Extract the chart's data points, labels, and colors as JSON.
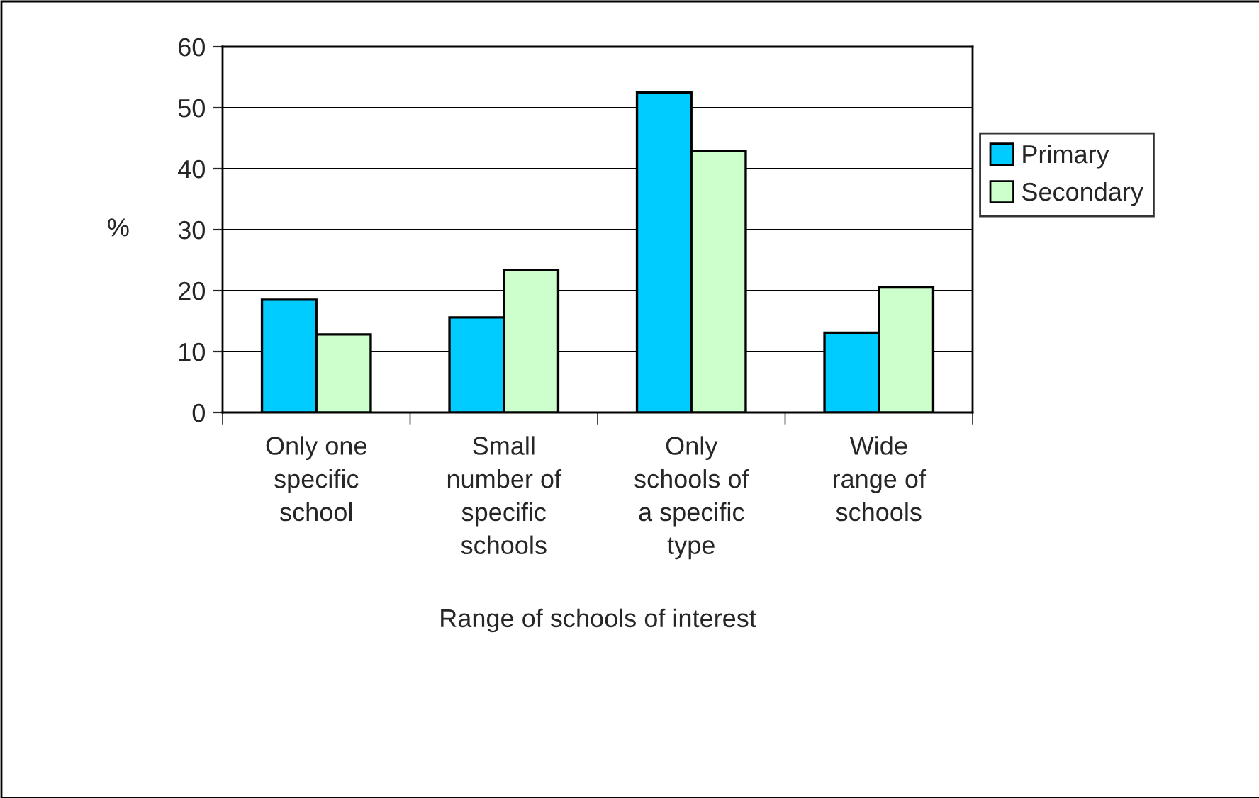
{
  "chart_data": {
    "type": "bar",
    "xlabel": "Range of schools of interest",
    "ylabel": "%",
    "categories": [
      "Only one\nspecific\nschool",
      "Small\nnumber of\nspecific\nschools",
      "Only\nschools of\na specific\ntype",
      "Wide\nrange of\nschools"
    ],
    "series": [
      {
        "name": "Primary",
        "color": "#00ccff",
        "values": [
          18.5,
          15.6,
          52.5,
          13.1
        ]
      },
      {
        "name": "Secondary",
        "color": "#ccffcc",
        "values": [
          12.8,
          23.4,
          42.9,
          20.5
        ]
      }
    ],
    "ylim": [
      0,
      60
    ],
    "yticks": [
      0,
      10,
      20,
      30,
      40,
      50,
      60
    ],
    "grid": "y",
    "legend": "right"
  }
}
